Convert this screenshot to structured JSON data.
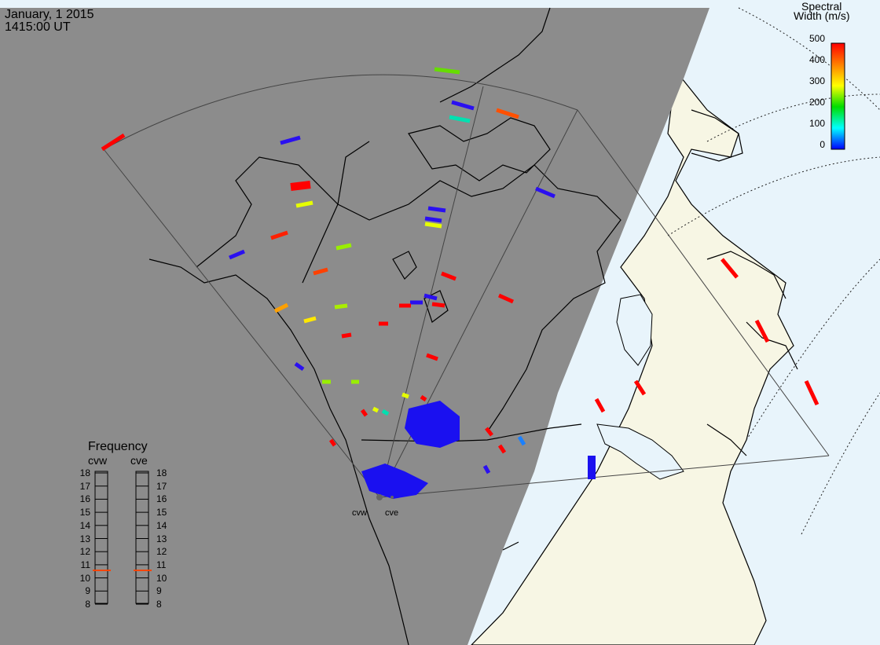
{
  "header": {
    "date": "January, 1 2015",
    "time": "1415:00 UT"
  },
  "colorbar": {
    "title_line1": "Spectral",
    "title_line2": "Width (m/s)",
    "ticks": [
      "500",
      "400",
      "300",
      "200",
      "100",
      "0"
    ],
    "colors": [
      "#ff0000",
      "#ff7f00",
      "#ffff00",
      "#00dd00",
      "#00ffff",
      "#0000ff"
    ]
  },
  "frequency_panel": {
    "title": "Frequency",
    "radar_a": "cvw",
    "radar_b": "cve",
    "scale": [
      "18",
      "17",
      "16",
      "15",
      "14",
      "13",
      "12",
      "11",
      "10",
      "9",
      "8"
    ],
    "marker_value_mhz": 10.5,
    "marker_color": "#ff4500"
  },
  "radars": {
    "west_label": "cvw",
    "east_label": "cve"
  },
  "map_colors": {
    "night": "#8c8c8c",
    "day_land": "#f7f6e4",
    "ocean_day": "#e8f4fb",
    "coastline": "#000000"
  }
}
